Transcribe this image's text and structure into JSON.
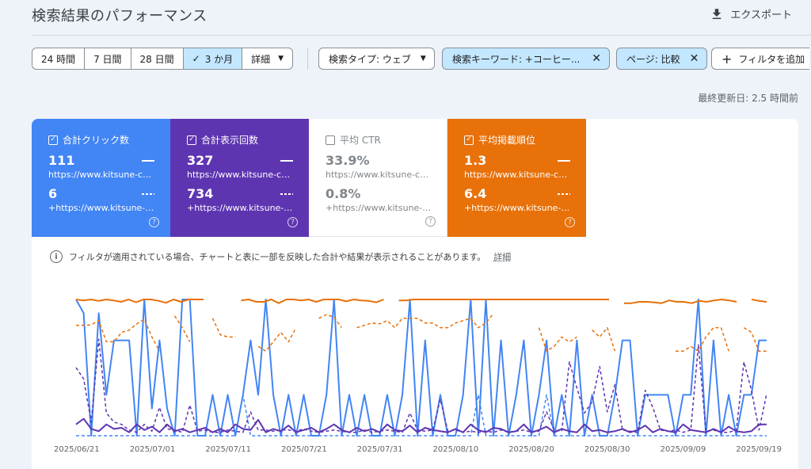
{
  "header": {
    "title": "検索結果のパフォーマンス",
    "export_label": "エクスポート"
  },
  "range": {
    "options": [
      "24 時間",
      "7 日間",
      "28 日間",
      "3 か月",
      "詳細"
    ],
    "active_index": 3
  },
  "filters": {
    "search_type": "検索タイプ: ウェブ",
    "query": "検索キーワード: +コーヒー...",
    "page": "ページ: 比較",
    "add": "フィルタを追加"
  },
  "last_updated": "最終更新日: 2.5 時間前",
  "metrics": [
    {
      "label": "合計クリック数",
      "checked": true,
      "value1": "111",
      "sub1": "https://www.kitsune-coff...",
      "value2": "6",
      "sub2": "+https://www.kitsune-co..."
    },
    {
      "label": "合計表示回数",
      "checked": true,
      "value1": "327",
      "sub1": "https://www.kitsune-coff...",
      "value2": "734",
      "sub2": "+https://www.kitsune-co..."
    },
    {
      "label": "平均 CTR",
      "checked": false,
      "value1": "33.9%",
      "sub1": "https://www.kitsune-coff...",
      "value2": "0.8%",
      "sub2": "+https://www.kitsune-co..."
    },
    {
      "label": "平均掲載順位",
      "checked": true,
      "value1": "1.3",
      "sub1": "https://www.kitsune-coff...",
      "value2": "6.4",
      "sub2": "+https://www.kitsune-co..."
    }
  ],
  "notice": {
    "text": "フィルタが適用されている場合、チャートと表に一部を反映した合計や結果が表示されることがあります。",
    "link": "詳細"
  },
  "colors": {
    "clicks": "#4285f4",
    "impressions": "#5e35b1",
    "position": "#e8710a"
  },
  "chart_data": {
    "type": "line",
    "x_labels": [
      "2025/06/21",
      "2025/07/01",
      "2025/07/11",
      "2025/07/21",
      "2025/07/31",
      "2025/08/10",
      "2025/08/20",
      "2025/08/30",
      "2025/09/09",
      "2025/09/19"
    ],
    "series": [
      {
        "name": "合計クリック数",
        "style": "solid",
        "color": "#4285f4",
        "values": [
          10,
          9,
          0,
          9,
          3,
          7,
          7,
          7,
          0,
          10,
          2,
          7,
          2,
          0,
          10,
          10,
          0,
          0,
          3,
          0,
          3,
          0,
          3,
          7,
          3,
          10,
          3,
          0,
          3,
          0,
          3,
          0,
          0,
          3,
          10,
          0,
          3,
          0,
          3,
          0,
          0,
          3,
          0,
          3,
          10,
          0,
          7,
          0,
          3,
          0,
          0,
          3,
          10,
          0,
          10,
          0,
          7,
          0,
          3,
          7,
          0,
          3,
          7,
          0,
          3,
          0,
          7,
          0,
          3,
          0,
          0,
          3,
          7,
          7,
          0,
          3,
          3,
          3,
          3,
          0,
          3,
          3,
          10,
          0,
          7,
          0,
          3,
          0,
          3,
          3,
          7,
          7
        ]
      },
      {
        "name": "+合計クリック数",
        "style": "dashed",
        "color": "#4285f4",
        "values": [
          0,
          0,
          0,
          0,
          0,
          0,
          0,
          0,
          0,
          0,
          0,
          0,
          0,
          0,
          0,
          0,
          0,
          0,
          0,
          0,
          0,
          0,
          3,
          0,
          0,
          0,
          0,
          0,
          0,
          0,
          0,
          0,
          0,
          0,
          0,
          0,
          0,
          0,
          0,
          0,
          0,
          0,
          0,
          0,
          0,
          0,
          0,
          0,
          0,
          0,
          0,
          0,
          0,
          3,
          0,
          0,
          0,
          0,
          0,
          0,
          0,
          0,
          3,
          0,
          0,
          0,
          0,
          0,
          0,
          0,
          0,
          0,
          0,
          0,
          0,
          0,
          0,
          0,
          0,
          0,
          0,
          0,
          0,
          0,
          0,
          0,
          0,
          0,
          0,
          0,
          0,
          0
        ]
      },
      {
        "name": "合計表示回数",
        "style": "solid",
        "color": "#5e35b1",
        "values": [
          1,
          1.5,
          0.6,
          0.4,
          1,
          0.6,
          0.7,
          0.3,
          1,
          0.5,
          0.8,
          0.3,
          1,
          0.4,
          0.6,
          0.3,
          0.5,
          0.7,
          0.3,
          0.6,
          0.3,
          1,
          0.6,
          0.5,
          1.4,
          0.3,
          0.6,
          0.4,
          0.9,
          0.3,
          0.5,
          0.7,
          0.3,
          0.6,
          1,
          0.5,
          0.3,
          0.7,
          0.4,
          0.6,
          0.3,
          1,
          0.5,
          0.4,
          0.9,
          0.3,
          0.7,
          0.5,
          0.4,
          0.3,
          0.6,
          0.3,
          1,
          0.5,
          0.3,
          0.7,
          0.6,
          0.3,
          0.4,
          1,
          0.3,
          0.5,
          0.8,
          0.3,
          0.6,
          0.4,
          0.3,
          1,
          0.4,
          0.5,
          0.3,
          0.4,
          0.6,
          0.3,
          0.5,
          0.9,
          0.3,
          0.6,
          0.4,
          0.3,
          1,
          0.5,
          0.4,
          0.3,
          0.6,
          0.3,
          0.8,
          0.4,
          0.3,
          0.4,
          1,
          1
        ]
      },
      {
        "name": "+合計表示回数",
        "style": "dashed",
        "color": "#5e35b1",
        "values": [
          6,
          5,
          1.2,
          8.5,
          2,
          1.2,
          1,
          0.5,
          0.3,
          1,
          0.4,
          2.5,
          0.6,
          0.5,
          0.3,
          2.7,
          0.4,
          0.5,
          0.3,
          0.3,
          0.5,
          0.4,
          0.3,
          2.1,
          0.5,
          0.5,
          0.4,
          0.5,
          0.5,
          0.4,
          0.6,
          0.4,
          0.3,
          0.4,
          0.5,
          0.4,
          0.3,
          0.3,
          0.5,
          0.3,
          0.4,
          0.5,
          0.4,
          0.3,
          2,
          0.5,
          0.4,
          0.5,
          3.2,
          0.4,
          0.5,
          0.3,
          0.4,
          0.3,
          0.4,
          0.3,
          0.5,
          0.3,
          0.4,
          0.5,
          0.3,
          0.4,
          2.1,
          0.5,
          0.4,
          6.5,
          4.2,
          2,
          3,
          6.1,
          2.1,
          4.5,
          0.5,
          0.4,
          0.3,
          4,
          2.5,
          0.5,
          0.4,
          0.5,
          0.3,
          0.5,
          8,
          0.4,
          0.5,
          0.3,
          0.3,
          0.5,
          6.5,
          4,
          0.5,
          3.7
        ]
      },
      {
        "name": "平均掲載順位",
        "style": "solid",
        "color": "#e8710a",
        "values": [
          1,
          1.2,
          1,
          1.3,
          1,
          1.2,
          1.5,
          1,
          1.6,
          1,
          1,
          1.3,
          1.7,
          1,
          1.5,
          1,
          1,
          1,
          null,
          null,
          1.3,
          null,
          1.2,
          1,
          1.5,
          1.5,
          1,
          1.8,
          1,
          1,
          1.2,
          1,
          1.5,
          1,
          1,
          1,
          1.4,
          1,
          1.2,
          1.3,
          1.6,
          1,
          null,
          1.2,
          1.2,
          1,
          1,
          1,
          1,
          1,
          1,
          1,
          1,
          1,
          1,
          1,
          1,
          1,
          1,
          1,
          1,
          1,
          1,
          1,
          1,
          1,
          1,
          1,
          1,
          1,
          1,
          1,
          null,
          1.8,
          1.8,
          1.5,
          1.5,
          1.6,
          1.8,
          1.2,
          1.5,
          1.5,
          1.8,
          1.3,
          1.5,
          1.2,
          1,
          1.2,
          1.5,
          null,
          1,
          1.3,
          1.5
        ]
      },
      {
        "name": "+平均掲載順位",
        "style": "dashed",
        "color": "#e8710a",
        "values": [
          6.5,
          6.5,
          6.4,
          5.5,
          10,
          10,
          8,
          7.5,
          6.2,
          5.2,
          9,
          12,
          null,
          4.5,
          7,
          10,
          null,
          null,
          5,
          8.5,
          9,
          9,
          null,
          null,
          11,
          12,
          10,
          8,
          10,
          7,
          null,
          null,
          5,
          4.2,
          4.8,
          7,
          null,
          7,
          6.5,
          6,
          6.2,
          5.5,
          7,
          5,
          5,
          5,
          6,
          6,
          7,
          7,
          6,
          5.5,
          5,
          7,
          6,
          4,
          null,
          null,
          null,
          null,
          null,
          7,
          12,
          11,
          9,
          10,
          9,
          null,
          7.5,
          9,
          7,
          12,
          null,
          null,
          null,
          null,
          null,
          null,
          null,
          12,
          12,
          11,
          12,
          9,
          7,
          7,
          12,
          null,
          7,
          8,
          12,
          12
        ]
      }
    ]
  }
}
